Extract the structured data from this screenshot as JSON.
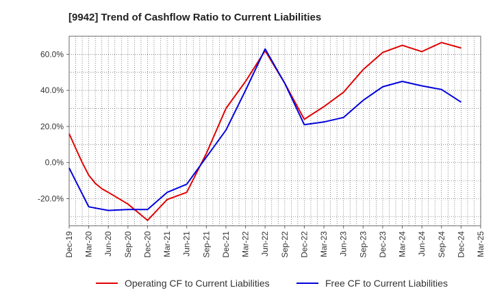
{
  "chart_data": {
    "type": "line",
    "title": "[9942]  Trend of Cashflow Ratio to Current Liabilities",
    "xlabel": "",
    "ylabel": "",
    "x_tick_labels": [
      "Dec-19",
      "Mar-20",
      "Jun-20",
      "Sep-20",
      "Dec-20",
      "Mar-21",
      "Jun-21",
      "Sep-21",
      "Dec-21",
      "Mar-22",
      "Jun-22",
      "Sep-22",
      "Dec-22",
      "Mar-23",
      "Jun-23",
      "Sep-23",
      "Dec-23",
      "Mar-24",
      "Jun-24",
      "Sep-24",
      "Dec-24",
      "Mar-25"
    ],
    "y_ticks": [
      -20,
      0,
      20,
      40,
      60
    ],
    "y_tick_labels": [
      "-20.0%",
      "0.0%",
      "20.0%",
      "40.0%",
      "60.0%"
    ],
    "ylim": [
      -35,
      70
    ],
    "grid": true,
    "legend_position": "bottom",
    "series": [
      {
        "name": "Operating CF to Current Liabilities",
        "color": "#e00000",
        "x": [
          "Dec-19",
          "Jan-20",
          "Feb-20",
          "Mar-20",
          "Apr-20",
          "May-20",
          "Jun-20",
          "Sep-20",
          "Dec-20",
          "Mar-21",
          "Jun-21",
          "Sep-21",
          "Dec-21",
          "Mar-22",
          "Jun-22",
          "Sep-22",
          "Dec-22",
          "Mar-23",
          "Jun-23",
          "Sep-23",
          "Dec-23",
          "Mar-24",
          "Jun-24",
          "Sep-24",
          "Dec-24"
        ],
        "values": [
          16,
          8,
          0,
          -7,
          -11.5,
          -14.5,
          -16.5,
          -23,
          -32,
          -20.5,
          -16.5,
          5,
          30,
          45,
          62,
          44,
          24,
          31,
          39,
          51.5,
          61,
          65,
          61.5,
          66.5,
          63.5
        ]
      },
      {
        "name": "Free CF to Current Liabilities",
        "color": "#0000dd",
        "x": [
          "Dec-19",
          "Mar-20",
          "Jun-20",
          "Sep-20",
          "Dec-20",
          "Mar-21",
          "Jun-21",
          "Sep-21",
          "Dec-21",
          "Mar-22",
          "Jun-22",
          "Sep-22",
          "Dec-22",
          "Mar-23",
          "Jun-23",
          "Sep-23",
          "Dec-23",
          "Mar-24",
          "Jun-24",
          "Sep-24",
          "Dec-24"
        ],
        "values": [
          -3,
          -24.5,
          -26.5,
          -26,
          -26,
          -16.5,
          -12,
          3,
          18,
          40,
          63,
          44,
          21,
          22.5,
          25,
          34.5,
          42,
          45,
          42.5,
          40.5,
          33.5
        ]
      }
    ]
  }
}
